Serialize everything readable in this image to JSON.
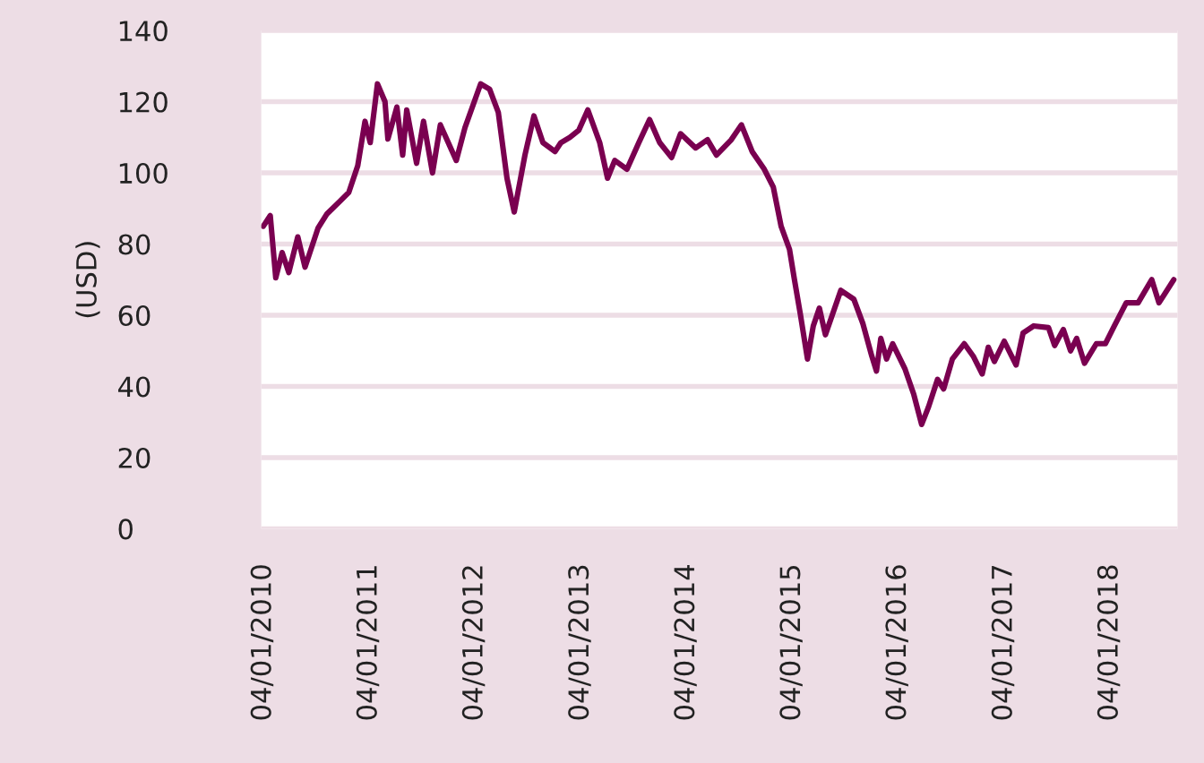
{
  "chart_data": {
    "type": "line",
    "ylabel": "(USD)",
    "x": [
      "2010-01-04",
      "2010-01-28",
      "2010-02-16",
      "2010-03-10",
      "2010-04-02",
      "2010-05-03",
      "2010-05-28",
      "2010-07-12",
      "2010-08-12",
      "2010-09-25",
      "2010-10-26",
      "2010-11-26",
      "2010-12-21",
      "2011-01-08",
      "2011-02-02",
      "2011-02-28",
      "2011-03-10",
      "2011-04-10",
      "2011-04-30",
      "2011-05-14",
      "2011-06-17",
      "2011-07-11",
      "2011-08-11",
      "2011-09-07",
      "2011-11-01",
      "2011-12-01",
      "2012-01-24",
      "2012-02-24",
      "2012-03-25",
      "2012-04-24",
      "2012-05-19",
      "2012-06-25",
      "2012-07-26",
      "2012-08-26",
      "2012-10-07",
      "2012-10-27",
      "2012-11-27",
      "2012-12-28",
      "2013-01-28",
      "2013-03-10",
      "2013-04-06",
      "2013-05-01",
      "2013-06-12",
      "2013-07-23",
      "2013-08-29",
      "2013-10-03",
      "2013-11-13",
      "2013-12-14",
      "2014-02-04",
      "2014-03-17",
      "2014-04-17",
      "2014-06-07",
      "2014-07-12",
      "2014-08-18",
      "2014-09-29",
      "2014-10-30",
      "2014-11-26",
      "2014-12-25",
      "2015-01-11",
      "2015-02-01",
      "2015-02-25",
      "2015-03-17",
      "2015-04-07",
      "2015-04-28",
      "2015-06-20",
      "2015-08-04",
      "2015-09-04",
      "2015-10-05",
      "2015-10-21",
      "2015-11-05",
      "2015-11-25",
      "2015-12-16",
      "2016-01-27",
      "2016-02-27",
      "2016-03-25",
      "2016-04-18",
      "2016-05-19",
      "2016-06-09",
      "2016-07-09",
      "2016-08-19",
      "2016-09-19",
      "2016-10-20",
      "2016-11-10",
      "2016-12-01",
      "2017-01-04",
      "2017-02-14",
      "2017-03-10",
      "2017-04-16",
      "2017-06-06",
      "2017-06-27",
      "2017-07-27",
      "2017-08-21",
      "2017-09-11",
      "2017-10-08",
      "2017-11-18",
      "2017-12-19",
      "2018-01-19",
      "2018-03-01",
      "2018-04-11",
      "2018-05-28",
      "2018-06-22",
      "2018-07-12",
      "2018-08-12"
    ],
    "series": [
      {
        "color": "#7a0050",
        "values": [
          85,
          88,
          70.5,
          77.6,
          72,
          82,
          73.5,
          84.5,
          88.5,
          92,
          94.5,
          102,
          114.5,
          108.5,
          125,
          120,
          109.5,
          118.5,
          105,
          117.7,
          102.7,
          114.5,
          100,
          113.5,
          103.5,
          112.7,
          125,
          123.5,
          117,
          98.5,
          89,
          105,
          116,
          108.5,
          106,
          108.5,
          110,
          112,
          117.7,
          108.5,
          98.5,
          103.5,
          101,
          108.5,
          115,
          108.5,
          104.3,
          111,
          107,
          109.3,
          105,
          109.3,
          113.5,
          106,
          101,
          96,
          85,
          78.5,
          70,
          60,
          47.7,
          57,
          62,
          54.5,
          67,
          64.5,
          57.7,
          48.5,
          44.3,
          53.5,
          47.7,
          52,
          45,
          37.7,
          29.3,
          34.3,
          42,
          39.3,
          47.7,
          52,
          48.5,
          43.5,
          51,
          47,
          52.7,
          46,
          55,
          57,
          56.5,
          51.5,
          56,
          50,
          53.5,
          46.5,
          52,
          52,
          57,
          63.5,
          63.5,
          70,
          63.5,
          66,
          70
        ]
      }
    ],
    "xlim": [
      "2009-12-28",
      "2018-08-25"
    ],
    "xticks": [
      {
        "value": "2010-01-04",
        "label": "04/01/2010"
      },
      {
        "value": "2011-01-04",
        "label": "04/01/2011"
      },
      {
        "value": "2012-01-04",
        "label": "04/01/2012"
      },
      {
        "value": "2013-01-04",
        "label": "04/01/2013"
      },
      {
        "value": "2014-01-04",
        "label": "04/01/2014"
      },
      {
        "value": "2015-01-04",
        "label": "04/01/2015"
      },
      {
        "value": "2016-01-04",
        "label": "04/01/2016"
      },
      {
        "value": "2017-01-04",
        "label": "04/01/2017"
      },
      {
        "value": "2018-01-04",
        "label": "04/01/2018"
      }
    ],
    "ylim": [
      0,
      140
    ],
    "yticks": [
      0,
      20,
      40,
      60,
      80,
      100,
      120,
      140
    ],
    "grid": "y",
    "legend": false,
    "line_style": "solid",
    "marker": "none"
  }
}
